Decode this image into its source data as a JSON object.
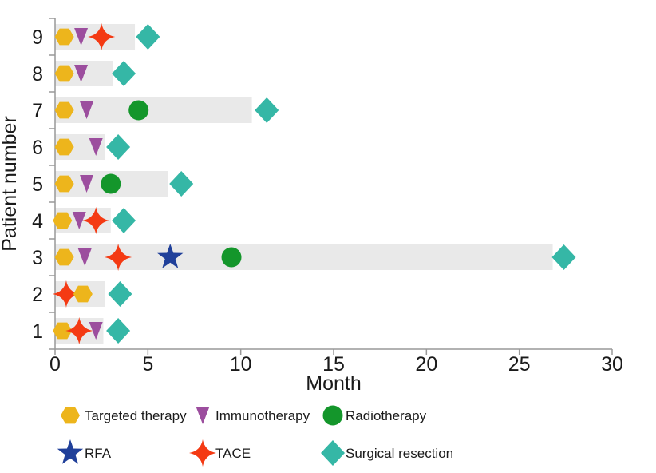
{
  "chart_data": {
    "type": "bar",
    "variant": "swimmer-plot",
    "title": "",
    "xlabel": "Month",
    "ylabel": "Patient number",
    "xlim": [
      0,
      30
    ],
    "x_ticks": [
      0,
      5,
      10,
      15,
      20,
      25,
      30
    ],
    "grid": false,
    "legend_position": "bottom",
    "bar_color": "#E9E9E9",
    "axis_color": "#999999",
    "text_color": "#1a1a1a",
    "marker_colors": {
      "targeted": "#EDB51C",
      "immuno": "#9C4E9E",
      "radio": "#14962B",
      "rfa": "#20409A",
      "tace": "#F43A13",
      "surgery": "#35B7A6"
    },
    "patients": [
      {
        "id": 9,
        "bar_end": 4.3,
        "events": [
          {
            "type": "targeted",
            "month": 0.5
          },
          {
            "type": "immuno",
            "month": 1.4
          },
          {
            "type": "tace",
            "month": 2.5
          },
          {
            "type": "surgery",
            "month": 5.0
          }
        ]
      },
      {
        "id": 8,
        "bar_end": 3.1,
        "events": [
          {
            "type": "targeted",
            "month": 0.5
          },
          {
            "type": "immuno",
            "month": 1.4
          },
          {
            "type": "surgery",
            "month": 3.7
          }
        ]
      },
      {
        "id": 7,
        "bar_end": 10.6,
        "events": [
          {
            "type": "targeted",
            "month": 0.5
          },
          {
            "type": "immuno",
            "month": 1.7
          },
          {
            "type": "radio",
            "month": 4.5
          },
          {
            "type": "surgery",
            "month": 11.4
          }
        ]
      },
      {
        "id": 6,
        "bar_end": 2.7,
        "events": [
          {
            "type": "targeted",
            "month": 0.5
          },
          {
            "type": "immuno",
            "month": 2.2
          },
          {
            "type": "surgery",
            "month": 3.4
          }
        ]
      },
      {
        "id": 5,
        "bar_end": 6.1,
        "events": [
          {
            "type": "targeted",
            "month": 0.5
          },
          {
            "type": "immuno",
            "month": 1.7
          },
          {
            "type": "radio",
            "month": 3.0
          },
          {
            "type": "surgery",
            "month": 6.8
          }
        ]
      },
      {
        "id": 4,
        "bar_end": 3.0,
        "events": [
          {
            "type": "targeted",
            "month": 0.4
          },
          {
            "type": "immuno",
            "month": 1.3
          },
          {
            "type": "tace",
            "month": 2.2
          },
          {
            "type": "surgery",
            "month": 3.7
          }
        ]
      },
      {
        "id": 3,
        "bar_end": 26.8,
        "events": [
          {
            "type": "targeted",
            "month": 0.5
          },
          {
            "type": "immuno",
            "month": 1.6
          },
          {
            "type": "tace",
            "month": 3.4
          },
          {
            "type": "rfa",
            "month": 6.2
          },
          {
            "type": "radio",
            "month": 9.5
          },
          {
            "type": "surgery",
            "month": 27.4
          }
        ]
      },
      {
        "id": 2,
        "bar_end": 2.7,
        "events": [
          {
            "type": "tace",
            "month": 0.6
          },
          {
            "type": "targeted",
            "month": 1.5
          },
          {
            "type": "surgery",
            "month": 3.5
          }
        ]
      },
      {
        "id": 1,
        "bar_end": 2.6,
        "events": [
          {
            "type": "targeted",
            "month": 0.4
          },
          {
            "type": "tace",
            "month": 1.3
          },
          {
            "type": "immuno",
            "month": 2.2
          },
          {
            "type": "surgery",
            "month": 3.4
          }
        ]
      }
    ],
    "legend": {
      "rows": [
        [
          {
            "type": "targeted",
            "label": "Targeted therapy"
          },
          {
            "type": "immuno",
            "label": "Immunotherapy"
          },
          {
            "type": "radio",
            "label": "Radiotherapy"
          }
        ],
        [
          {
            "type": "rfa",
            "label": "RFA"
          },
          {
            "type": "tace",
            "label": "TACE"
          },
          {
            "type": "surgery",
            "label": "Surgical resection"
          }
        ]
      ]
    }
  }
}
